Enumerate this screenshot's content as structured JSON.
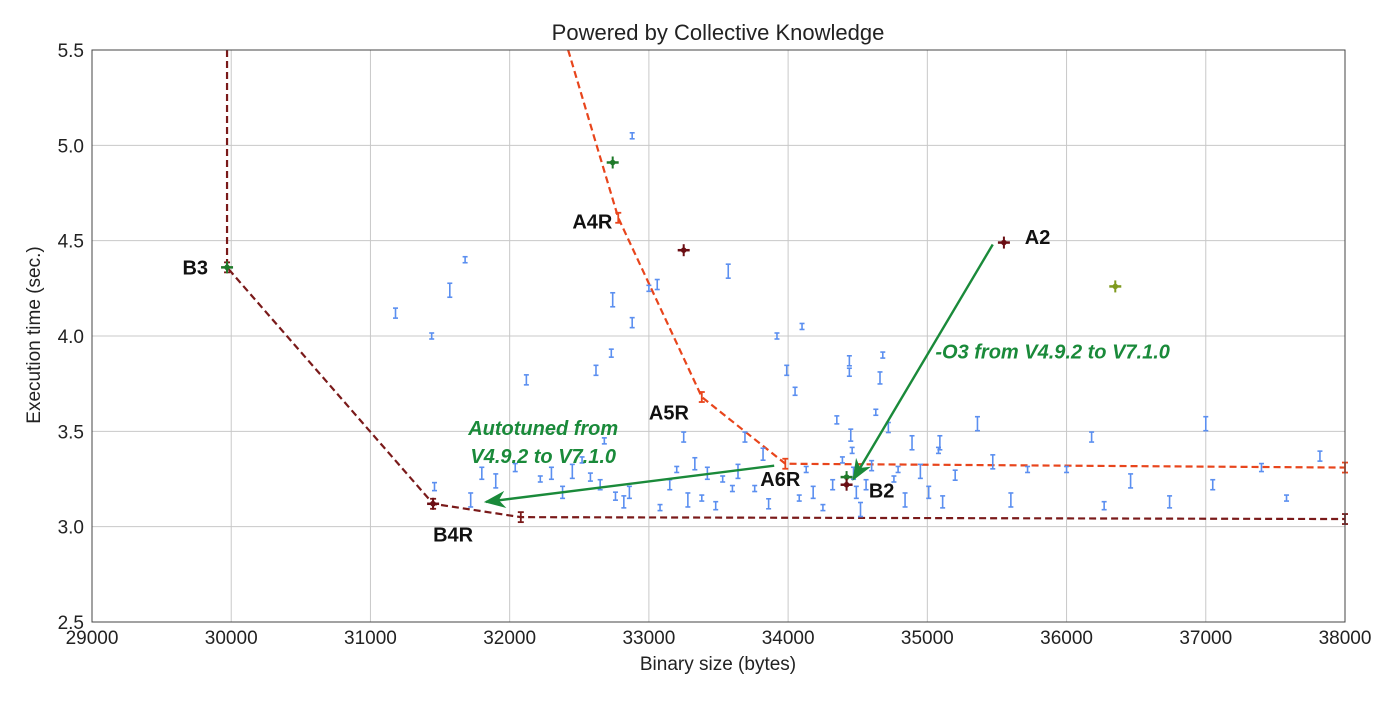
{
  "chart_data": {
    "type": "scatter",
    "title": "Powered by Collective Knowledge",
    "xlabel": "Binary size (bytes)",
    "ylabel": "Execution time (sec.)",
    "xlim": [
      29000,
      38000
    ],
    "ylim": [
      2.5,
      5.5
    ],
    "xticks": [
      "29000",
      "30000",
      "31000",
      "32000",
      "33000",
      "34000",
      "35000",
      "36000",
      "37000",
      "38000"
    ],
    "yticks": [
      "2.5",
      "3.0",
      "3.5",
      "4.0",
      "4.5",
      "5.0",
      "5.5"
    ],
    "grid": true,
    "colors": {
      "points": "#5b8ff0",
      "frontier_a": "#e8451c",
      "frontier_b": "#7a1a1a",
      "arrow": "#1a8a3a",
      "highlight_green": "#1f7a2a",
      "highlight_olive": "#7f9a1f",
      "highlight_dark": "#6b0e14"
    },
    "series": [
      {
        "kind": "points",
        "values": [
          [
            31180,
            4.12
          ],
          [
            31440,
            4.0
          ],
          [
            31570,
            4.24
          ],
          [
            31680,
            4.4
          ],
          [
            31460,
            3.21
          ],
          [
            31720,
            3.14
          ],
          [
            31800,
            3.28
          ],
          [
            31900,
            3.24
          ],
          [
            32040,
            3.31
          ],
          [
            32120,
            3.77
          ],
          [
            32220,
            3.25
          ],
          [
            32300,
            3.28
          ],
          [
            32380,
            3.18
          ],
          [
            32450,
            3.29
          ],
          [
            32520,
            3.35
          ],
          [
            32580,
            3.26
          ],
          [
            32650,
            3.22
          ],
          [
            32620,
            3.82
          ],
          [
            32680,
            3.45
          ],
          [
            32730,
            3.91
          ],
          [
            32740,
            4.19
          ],
          [
            32760,
            3.16
          ],
          [
            32820,
            3.13
          ],
          [
            32860,
            3.18
          ],
          [
            32880,
            4.07
          ],
          [
            32880,
            5.05
          ],
          [
            33000,
            4.25
          ],
          [
            33060,
            4.27
          ],
          [
            33080,
            3.1
          ],
          [
            33150,
            3.22
          ],
          [
            33200,
            3.3
          ],
          [
            33250,
            3.47
          ],
          [
            33280,
            3.14
          ],
          [
            33330,
            3.33
          ],
          [
            33380,
            3.15
          ],
          [
            33420,
            3.28
          ],
          [
            33480,
            3.11
          ],
          [
            33530,
            3.25
          ],
          [
            33570,
            4.34
          ],
          [
            33600,
            3.2
          ],
          [
            33640,
            3.29
          ],
          [
            33690,
            3.47
          ],
          [
            33760,
            3.2
          ],
          [
            33820,
            3.38
          ],
          [
            33860,
            3.12
          ],
          [
            33920,
            4.0
          ],
          [
            33990,
            3.82
          ],
          [
            34050,
            3.71
          ],
          [
            34080,
            3.15
          ],
          [
            34100,
            4.05
          ],
          [
            34130,
            3.3
          ],
          [
            34180,
            3.18
          ],
          [
            34250,
            3.1
          ],
          [
            34320,
            3.22
          ],
          [
            34350,
            3.56
          ],
          [
            34390,
            3.35
          ],
          [
            34440,
            3.87
          ],
          [
            34440,
            3.81
          ],
          [
            34450,
            3.48
          ],
          [
            34460,
            3.4
          ],
          [
            34470,
            3.28
          ],
          [
            34490,
            3.18
          ],
          [
            34520,
            3.09
          ],
          [
            34560,
            3.22
          ],
          [
            34600,
            3.32
          ],
          [
            34630,
            3.6
          ],
          [
            34660,
            3.78
          ],
          [
            34680,
            3.9
          ],
          [
            34720,
            3.52
          ],
          [
            34760,
            3.25
          ],
          [
            34790,
            3.3
          ],
          [
            34840,
            3.14
          ],
          [
            34890,
            3.44
          ],
          [
            34950,
            3.29
          ],
          [
            35010,
            3.18
          ],
          [
            35080,
            3.4
          ],
          [
            35090,
            3.44
          ],
          [
            35110,
            3.13
          ],
          [
            35200,
            3.27
          ],
          [
            35360,
            3.54
          ],
          [
            35470,
            3.34
          ],
          [
            35600,
            3.14
          ],
          [
            35720,
            3.3
          ],
          [
            36000,
            3.3
          ],
          [
            36180,
            3.47
          ],
          [
            36270,
            3.11
          ],
          [
            36460,
            3.24
          ],
          [
            36740,
            3.13
          ],
          [
            37000,
            3.54
          ],
          [
            37050,
            3.22
          ],
          [
            37400,
            3.31
          ],
          [
            37580,
            3.15
          ],
          [
            37820,
            3.37
          ]
        ]
      },
      {
        "kind": "frontier",
        "name": "A frontier",
        "values": [
          [
            32420,
            5.55
          ],
          [
            32780,
            4.62
          ],
          [
            33380,
            3.68
          ],
          [
            33980,
            3.33
          ],
          [
            38000,
            3.31
          ]
        ]
      },
      {
        "kind": "frontier",
        "name": "B frontier",
        "values": [
          [
            29970,
            5.52
          ],
          [
            29970,
            4.36
          ],
          [
            31450,
            3.12
          ],
          [
            32080,
            3.05
          ],
          [
            38000,
            3.04
          ]
        ]
      },
      {
        "kind": "highlight",
        "values": [
          [
            29970,
            4.36,
            "green"
          ],
          [
            32740,
            4.91,
            "green"
          ],
          [
            34420,
            3.26,
            "green"
          ],
          [
            35550,
            4.49,
            "dark"
          ],
          [
            33250,
            4.45,
            "dark"
          ],
          [
            34420,
            3.22,
            "dark"
          ],
          [
            31450,
            3.12,
            "dark"
          ],
          [
            36350,
            4.26,
            "olive"
          ]
        ]
      }
    ],
    "annotations": [
      {
        "text": "A2",
        "x": 35700,
        "y": 4.52
      },
      {
        "text": "A4R",
        "x": 32450,
        "y": 4.6
      },
      {
        "text": "A5R",
        "x": 33000,
        "y": 3.6
      },
      {
        "text": "A6R",
        "x": 33800,
        "y": 3.25
      },
      {
        "text": "B2",
        "x": 34580,
        "y": 3.19
      },
      {
        "text": "B3",
        "x": 29650,
        "y": 4.36
      },
      {
        "text": "B4R",
        "x": 31450,
        "y": 2.96
      }
    ],
    "arrows": [
      {
        "label": "-O3 from V4.9.2 to V7.1.0",
        "from": [
          35470,
          4.48
        ],
        "to": [
          34470,
          3.25
        ]
      },
      {
        "label": "Autotuned from V4.9.2 to V7.1.0",
        "label_lines": [
          "Autotuned from",
          "V4.9.2 to V7.1.0"
        ],
        "from": [
          33900,
          3.32
        ],
        "to": [
          31830,
          3.13
        ]
      }
    ]
  }
}
